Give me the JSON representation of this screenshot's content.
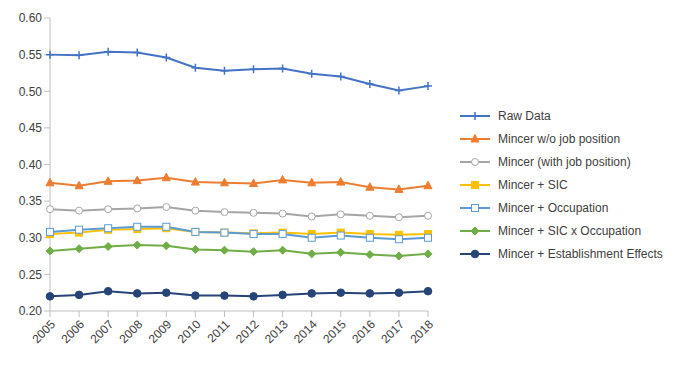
{
  "chart_data": {
    "type": "line",
    "categories": [
      "2005",
      "2006",
      "2007",
      "2008",
      "2009",
      "2010",
      "2011",
      "2012",
      "2013",
      "2014",
      "2015",
      "2016",
      "2017",
      "2018"
    ],
    "ylim": [
      0.2,
      0.6
    ],
    "yticks": [
      {
        "value": 0.2,
        "label": "0.20"
      },
      {
        "value": 0.25,
        "label": "0.25"
      },
      {
        "value": 0.3,
        "label": "0.30"
      },
      {
        "value": 0.35,
        "label": "0.35"
      },
      {
        "value": 0.4,
        "label": "0.40"
      },
      {
        "value": 0.45,
        "label": "0.45"
      },
      {
        "value": 0.5,
        "label": "0.50"
      },
      {
        "value": 0.55,
        "label": "0.55"
      },
      {
        "value": 0.6,
        "label": "0.60"
      }
    ],
    "grid": false,
    "legend": "right",
    "series": [
      {
        "name": "Raw Data",
        "color": "#4472c4",
        "marker": "plus",
        "values": [
          0.55,
          0.549,
          0.554,
          0.553,
          0.546,
          0.532,
          0.528,
          0.53,
          0.531,
          0.524,
          0.52,
          0.51,
          0.501,
          0.507
        ]
      },
      {
        "name": "Mincer w/o job position",
        "color": "#ed7d31",
        "marker": "triangle",
        "values": [
          0.375,
          0.371,
          0.377,
          0.378,
          0.382,
          0.376,
          0.375,
          0.374,
          0.379,
          0.375,
          0.376,
          0.369,
          0.366,
          0.371
        ]
      },
      {
        "name": "Mincer (with job position)",
        "color": "#a5a5a5",
        "marker": "open_circle",
        "values": [
          0.339,
          0.337,
          0.339,
          0.34,
          0.342,
          0.337,
          0.335,
          0.334,
          0.333,
          0.329,
          0.332,
          0.33,
          0.328,
          0.33
        ]
      },
      {
        "name": "Mincer + SIC",
        "color": "#ffc000",
        "marker": "square",
        "values": [
          0.305,
          0.307,
          0.311,
          0.312,
          0.313,
          0.308,
          0.307,
          0.306,
          0.307,
          0.305,
          0.307,
          0.305,
          0.304,
          0.305
        ]
      },
      {
        "name": "Mincer + Occupation",
        "color": "#5b9bd5",
        "marker": "open_square",
        "values": [
          0.308,
          0.311,
          0.313,
          0.315,
          0.315,
          0.308,
          0.307,
          0.305,
          0.305,
          0.3,
          0.303,
          0.3,
          0.298,
          0.3
        ]
      },
      {
        "name": "Mincer + SIC x Occupation",
        "color": "#70ad47",
        "marker": "diamond",
        "values": [
          0.282,
          0.285,
          0.288,
          0.29,
          0.289,
          0.284,
          0.283,
          0.281,
          0.283,
          0.278,
          0.28,
          0.277,
          0.275,
          0.278
        ]
      },
      {
        "name": "Mincer + Establishment Effects",
        "color": "#264478",
        "marker": "circle",
        "values": [
          0.22,
          0.222,
          0.227,
          0.224,
          0.225,
          0.221,
          0.221,
          0.22,
          0.222,
          0.224,
          0.225,
          0.224,
          0.225,
          0.227
        ]
      }
    ]
  }
}
